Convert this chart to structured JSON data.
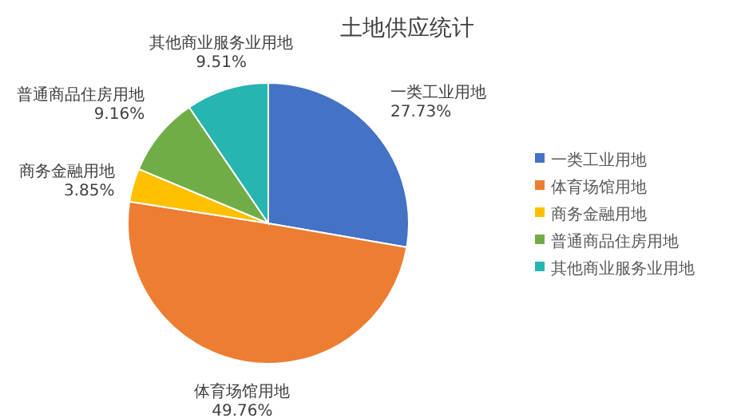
{
  "chart_data": {
    "type": "pie",
    "title": "土地供应统计",
    "categories": [
      "一类工业用地",
      "体育场馆用地",
      "商务金融用地",
      "普通商品住房用地",
      "其他商业服务业用地"
    ],
    "values": [
      27.73,
      49.76,
      3.85,
      9.16,
      9.51
    ],
    "value_labels": [
      "27.73%",
      "49.76%",
      "3.85%",
      "9.16%",
      "9.51%"
    ],
    "colors": [
      "#4472c4",
      "#ed7d31",
      "#ffc000",
      "#70ad47",
      "#26b5b0"
    ],
    "legend": "right"
  }
}
